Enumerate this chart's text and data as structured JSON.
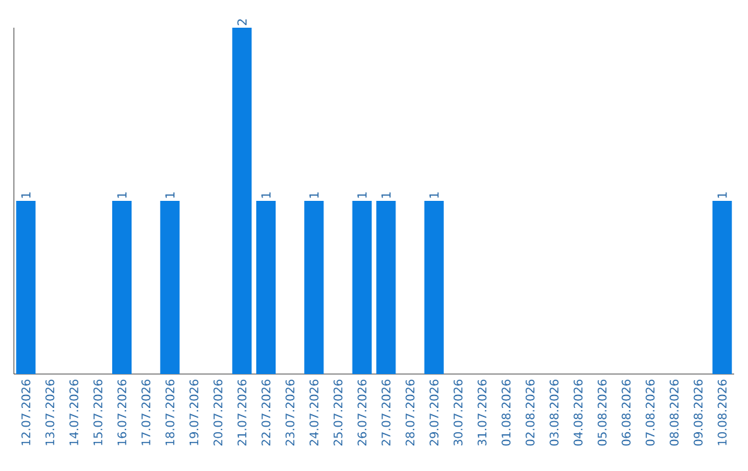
{
  "chart_data": {
    "type": "bar",
    "categories": [
      "12.07.2026",
      "13.07.2026",
      "14.07.2026",
      "15.07.2026",
      "16.07.2026",
      "17.07.2026",
      "18.07.2026",
      "19.07.2026",
      "20.07.2026",
      "21.07.2026",
      "22.07.2026",
      "23.07.2026",
      "24.07.2026",
      "25.07.2026",
      "26.07.2026",
      "27.07.2026",
      "28.07.2026",
      "29.07.2026",
      "30.07.2026",
      "31.07.2026",
      "01.08.2026",
      "02.08.2026",
      "03.08.2026",
      "04.08.2026",
      "05.08.2026",
      "06.08.2026",
      "07.08.2026",
      "08.08.2026",
      "09.08.2026",
      "10.08.2026"
    ],
    "values": [
      1,
      0,
      0,
      0,
      1,
      0,
      1,
      0,
      0,
      2,
      1,
      0,
      1,
      0,
      1,
      1,
      0,
      1,
      0,
      0,
      0,
      0,
      0,
      0,
      0,
      0,
      0,
      0,
      0,
      1
    ],
    "value_labels": [
      "1",
      null,
      null,
      null,
      "1",
      null,
      "1",
      null,
      null,
      "2",
      "1",
      null,
      "1",
      null,
      "1",
      "1",
      null,
      "1",
      null,
      null,
      null,
      null,
      null,
      null,
      null,
      null,
      null,
      null,
      null,
      "1"
    ],
    "color": "#0a7fe3",
    "ylim": [
      0,
      2
    ]
  }
}
